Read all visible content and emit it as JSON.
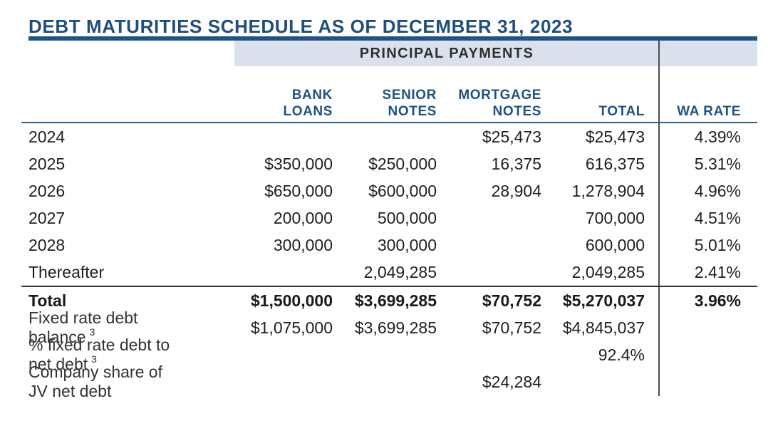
{
  "title": "DEBT MATURITIES SCHEDULE AS OF DECEMBER 31, 2023",
  "band_label": "PRINCIPAL PAYMENTS",
  "colors": {
    "title_blue": "#1d4e7e",
    "header_blue": "#1d5384",
    "band_background": "#dae1ec",
    "thick_rule": "#1f5383",
    "thin_rule": "#2d5e93",
    "body_text": "#1f1f1f"
  },
  "columns": {
    "bank": {
      "line1": "BANK",
      "line2": "LOANS"
    },
    "senior": {
      "line1": "SENIOR",
      "line2": "NOTES"
    },
    "mortgage": {
      "line1": "MORTGAGE",
      "line2": "NOTES"
    },
    "total": {
      "line1": "",
      "line2": "TOTAL"
    },
    "wa": {
      "line1": "",
      "line2": "WA RATE"
    }
  },
  "rows": [
    {
      "label": "2024",
      "bank": "",
      "senior": "",
      "mortgage": "$25,473",
      "total": "$25,473",
      "wa": "4.39%"
    },
    {
      "label": "2025",
      "bank": "$350,000",
      "senior": "$250,000",
      "mortgage": "16,375",
      "total": "616,375",
      "wa": "5.31%"
    },
    {
      "label": "2026",
      "bank": "$650,000",
      "senior": "$600,000",
      "mortgage": "28,904",
      "total": "1,278,904",
      "wa": "4.96%"
    },
    {
      "label": "2027",
      "bank": "200,000",
      "senior": "500,000",
      "mortgage": "",
      "total": "700,000",
      "wa": "4.51%"
    },
    {
      "label": "2028",
      "bank": "300,000",
      "senior": "300,000",
      "mortgage": "",
      "total": "600,000",
      "wa": "5.01%"
    },
    {
      "label": "Thereafter",
      "bank": "",
      "senior": "2,049,285",
      "mortgage": "",
      "total": "2,049,285",
      "wa": "2.41%"
    },
    {
      "label": "Total",
      "bank": "$1,500,000",
      "senior": "$3,699,285",
      "mortgage": "$70,752",
      "total": "$5,270,037",
      "wa": "3.96%"
    },
    {
      "label": "Fixed rate debt balance",
      "sup": "3",
      "bank": "$1,075,000",
      "senior": "$3,699,285",
      "mortgage": "$70,752",
      "total": "$4,845,037",
      "wa": ""
    },
    {
      "label": "% fixed rate debt to net debt",
      "sup": "3",
      "bank": "",
      "senior": "",
      "mortgage": "",
      "total": "92.4%",
      "wa": ""
    },
    {
      "label": "Company share of JV net debt",
      "bank": "",
      "senior": "",
      "mortgage": "$24,284",
      "total": "",
      "wa": ""
    }
  ]
}
